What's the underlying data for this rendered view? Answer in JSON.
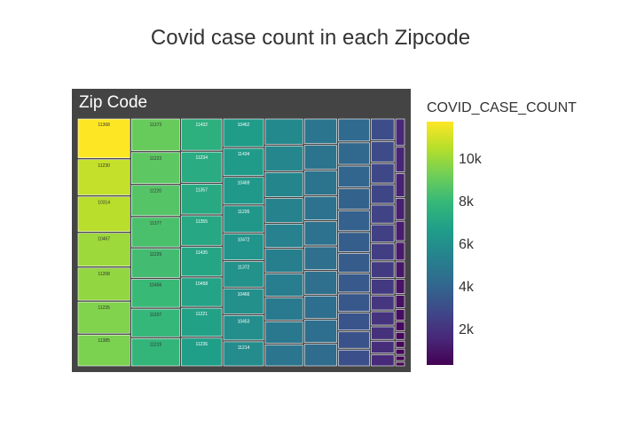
{
  "chart_data": {
    "type": "treemap",
    "title": "Covid case count in each Zipcode",
    "root_label": "Zip Code",
    "root_color": "#444444",
    "colorscale": "Viridis",
    "colorbar": {
      "title": "COVID_CASE_COUNT",
      "range": [
        300,
        11700
      ],
      "ticks": [
        2000,
        4000,
        6000,
        8000,
        10000
      ],
      "tick_labels": [
        "2k",
        "4k",
        "6k",
        "8k",
        "10k"
      ]
    },
    "columns": [
      {
        "tiles": [
          {
            "label": "11368",
            "value": 11700
          },
          {
            "label": "11230",
            "value": 10700
          },
          {
            "label": "10314",
            "value": 10500
          },
          {
            "label": "10467",
            "value": 10000
          },
          {
            "label": "11208",
            "value": 9800
          },
          {
            "label": "11235",
            "value": 9500
          },
          {
            "label": "11385",
            "value": 9400
          }
        ]
      },
      {
        "tiles": [
          {
            "label": "11373",
            "value": 9000
          },
          {
            "label": "11223",
            "value": 8800
          },
          {
            "label": "11220",
            "value": 8600
          },
          {
            "label": "11377",
            "value": 8400
          },
          {
            "label": "11229",
            "value": 8200
          },
          {
            "label": "10456",
            "value": 8000
          },
          {
            "label": "11207",
            "value": 7900
          },
          {
            "label": "11219",
            "value": 7800
          }
        ]
      },
      {
        "tiles": [
          {
            "label": "11432",
            "value": 7500
          },
          {
            "label": "11234",
            "value": 7300
          },
          {
            "label": "11357",
            "value": 7200
          },
          {
            "label": "11355",
            "value": 7100
          },
          {
            "label": "11435",
            "value": 7000
          },
          {
            "label": "10458",
            "value": 6900
          },
          {
            "label": "11221",
            "value": 6800
          },
          {
            "label": "11236",
            "value": 6700
          }
        ]
      },
      {
        "tiles": [
          {
            "label": "10462",
            "value": 6600
          },
          {
            "label": "11434",
            "value": 6500
          },
          {
            "label": "10469",
            "value": 6400
          },
          {
            "label": "11226",
            "value": 6300
          },
          {
            "label": "10472",
            "value": 6200
          },
          {
            "label": "11372",
            "value": 6100
          },
          {
            "label": "10466",
            "value": 6000
          },
          {
            "label": "10453",
            "value": 5900
          },
          {
            "label": "11214",
            "value": 5800
          }
        ]
      },
      {
        "tiles": [
          {
            "label": "",
            "value": 5700
          },
          {
            "label": "",
            "value": 5600
          },
          {
            "label": "",
            "value": 5500
          },
          {
            "label": "",
            "value": 5400
          },
          {
            "label": "",
            "value": 5300
          },
          {
            "label": "",
            "value": 5200
          },
          {
            "label": "",
            "value": 5100
          },
          {
            "label": "",
            "value": 5000
          },
          {
            "label": "",
            "value": 4900
          },
          {
            "label": "",
            "value": 4800
          }
        ]
      },
      {
        "tiles": [
          {
            "label": "",
            "value": 4800
          },
          {
            "label": "",
            "value": 4700
          },
          {
            "label": "",
            "value": 4700
          },
          {
            "label": "",
            "value": 4600
          },
          {
            "label": "",
            "value": 4600
          },
          {
            "label": "",
            "value": 4500
          },
          {
            "label": "",
            "value": 4500
          },
          {
            "label": "",
            "value": 4400
          },
          {
            "label": "",
            "value": 4400
          },
          {
            "label": "",
            "value": 4300
          }
        ]
      },
      {
        "tiles": [
          {
            "label": "",
            "value": 4200
          },
          {
            "label": "",
            "value": 4100
          },
          {
            "label": "",
            "value": 4000
          },
          {
            "label": "",
            "value": 3900
          },
          {
            "label": "",
            "value": 3800
          },
          {
            "label": "",
            "value": 3700
          },
          {
            "label": "",
            "value": 3600
          },
          {
            "label": "",
            "value": 3500
          },
          {
            "label": "",
            "value": 3400
          },
          {
            "label": "",
            "value": 3300
          },
          {
            "label": "",
            "value": 3200
          },
          {
            "label": "",
            "value": 3100
          }
        ]
      },
      {
        "tiles": [
          {
            "label": "",
            "value": 3000
          },
          {
            "label": "",
            "value": 2900
          },
          {
            "label": "",
            "value": 2800
          },
          {
            "label": "",
            "value": 2700
          },
          {
            "label": "",
            "value": 2600
          },
          {
            "label": "",
            "value": 2500
          },
          {
            "label": "",
            "value": 2400
          },
          {
            "label": "",
            "value": 2300
          },
          {
            "label": "",
            "value": 2200
          },
          {
            "label": "",
            "value": 2100
          },
          {
            "label": "",
            "value": 2000
          },
          {
            "label": "",
            "value": 1900
          },
          {
            "label": "",
            "value": 1800
          },
          {
            "label": "",
            "value": 1700
          }
        ]
      },
      {
        "tiles": [
          {
            "label": "",
            "value": 1600
          },
          {
            "label": "",
            "value": 1500
          },
          {
            "label": "",
            "value": 1400
          },
          {
            "label": "",
            "value": 1300
          },
          {
            "label": "",
            "value": 1200
          },
          {
            "label": "",
            "value": 1100
          },
          {
            "label": "",
            "value": 1000
          },
          {
            "label": "",
            "value": 900
          },
          {
            "label": "",
            "value": 800
          },
          {
            "label": "",
            "value": 700
          },
          {
            "label": "",
            "value": 600
          },
          {
            "label": "",
            "value": 500
          },
          {
            "label": "",
            "value": 450
          },
          {
            "label": "",
            "value": 400
          },
          {
            "label": "",
            "value": 350
          },
          {
            "label": "",
            "value": 300
          }
        ]
      }
    ]
  }
}
